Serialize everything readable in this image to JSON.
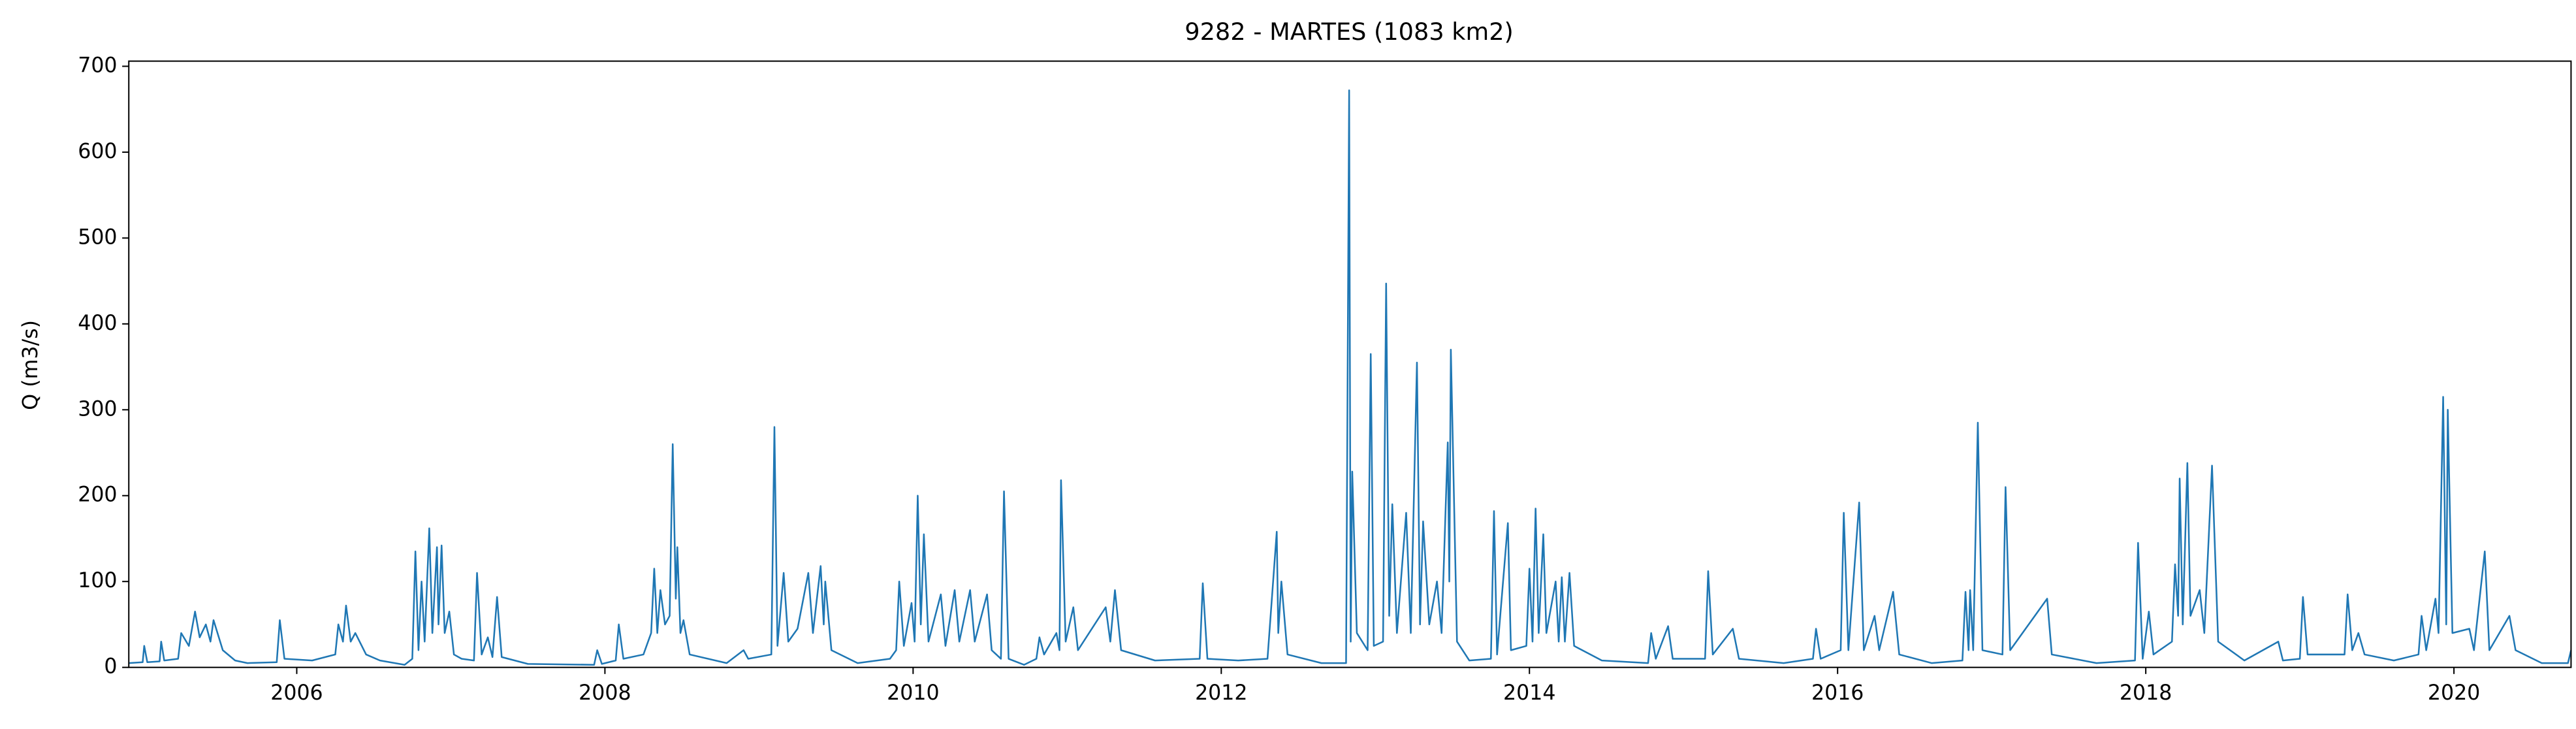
{
  "chart_data": {
    "type": "line",
    "title": "9282 - MARTES (1083 km2)",
    "y_label": "Q (m3/s)",
    "color": "#1f77b4",
    "x": [
      2004.91,
      2005.0,
      2005.01,
      2005.03,
      2005.11,
      2005.12,
      2005.14,
      2005.23,
      2005.25,
      2005.3,
      2005.34,
      2005.37,
      2005.41,
      2005.44,
      2005.46,
      2005.52,
      2005.6,
      2005.68,
      2005.87,
      2005.89,
      2005.92,
      2006.1,
      2006.25,
      2006.27,
      2006.3,
      2006.32,
      2006.35,
      2006.38,
      2006.45,
      2006.54,
      2006.7,
      2006.75,
      2006.77,
      2006.79,
      2006.81,
      2006.83,
      2006.86,
      2006.88,
      2006.91,
      2006.92,
      2006.94,
      2006.96,
      2006.99,
      2007.02,
      2007.07,
      2007.15,
      2007.17,
      2007.2,
      2007.24,
      2007.27,
      2007.3,
      2007.33,
      2007.5,
      2007.93,
      2007.95,
      2007.98,
      2008.07,
      2008.09,
      2008.12,
      2008.25,
      2008.3,
      2008.32,
      2008.34,
      2008.36,
      2008.39,
      2008.42,
      2008.44,
      2008.46,
      2008.47,
      2008.49,
      2008.51,
      2008.55,
      2008.79,
      2008.9,
      2008.93,
      2009.08,
      2009.1,
      2009.12,
      2009.16,
      2009.19,
      2009.25,
      2009.32,
      2009.35,
      2009.4,
      2009.42,
      2009.43,
      2009.47,
      2009.64,
      2009.85,
      2009.89,
      2009.91,
      2009.94,
      2009.99,
      2010.01,
      2010.03,
      2010.05,
      2010.07,
      2010.1,
      2010.18,
      2010.21,
      2010.27,
      2010.3,
      2010.37,
      2010.4,
      2010.48,
      2010.51,
      2010.57,
      2010.59,
      2010.62,
      2010.72,
      2010.8,
      2010.82,
      2010.85,
      2010.93,
      2010.95,
      2010.96,
      2010.99,
      2011.04,
      2011.07,
      2011.25,
      2011.28,
      2011.31,
      2011.35,
      2011.57,
      2011.86,
      2011.88,
      2011.91,
      2012.11,
      2012.3,
      2012.36,
      2012.37,
      2012.39,
      2012.43,
      2012.65,
      2012.81,
      2012.83,
      2012.84,
      2012.85,
      2012.88,
      2012.95,
      2012.97,
      2012.99,
      2013.05,
      2013.07,
      2013.09,
      2013.11,
      2013.14,
      2013.2,
      2013.23,
      2013.27,
      2013.29,
      2013.31,
      2013.35,
      2013.4,
      2013.43,
      2013.47,
      2013.48,
      2013.49,
      2013.53,
      2013.61,
      2013.75,
      2013.77,
      2013.79,
      2013.86,
      2013.88,
      2013.98,
      2014.0,
      2014.02,
      2014.04,
      2014.06,
      2014.09,
      2014.11,
      2014.17,
      2014.19,
      2014.21,
      2014.23,
      2014.26,
      2014.29,
      2014.47,
      2014.77,
      2014.79,
      2014.82,
      2014.9,
      2014.93,
      2015.14,
      2015.16,
      2015.19,
      2015.32,
      2015.36,
      2015.65,
      2015.84,
      2015.86,
      2015.89,
      2016.02,
      2016.04,
      2016.07,
      2016.14,
      2016.17,
      2016.24,
      2016.27,
      2016.36,
      2016.4,
      2016.61,
      2016.81,
      2016.83,
      2016.85,
      2016.86,
      2016.88,
      2016.91,
      2016.94,
      2017.07,
      2017.09,
      2017.12,
      2017.36,
      2017.39,
      2017.68,
      2017.93,
      2017.95,
      2017.98,
      2018.02,
      2018.05,
      2018.17,
      2018.19,
      2018.21,
      2018.22,
      2018.24,
      2018.27,
      2018.29,
      2018.35,
      2018.38,
      2018.43,
      2018.47,
      2018.64,
      2018.86,
      2018.89,
      2019.0,
      2019.02,
      2019.05,
      2019.29,
      2019.31,
      2019.34,
      2019.38,
      2019.42,
      2019.61,
      2019.77,
      2019.79,
      2019.82,
      2019.88,
      2019.9,
      2019.93,
      2019.95,
      2019.96,
      2019.99,
      2020.1,
      2020.13,
      2020.2,
      2020.23,
      2020.36,
      2020.4,
      2020.57,
      2020.74,
      2020.76
    ],
    "values": [
      5,
      6,
      25,
      6,
      7,
      30,
      8,
      10,
      40,
      25,
      65,
      35,
      50,
      30,
      55,
      20,
      8,
      5,
      6,
      55,
      10,
      8,
      15,
      50,
      30,
      72,
      30,
      40,
      15,
      8,
      3,
      10,
      135,
      20,
      100,
      30,
      162,
      40,
      140,
      50,
      142,
      40,
      65,
      15,
      10,
      8,
      110,
      15,
      35,
      12,
      82,
      12,
      4,
      3,
      20,
      4,
      8,
      50,
      10,
      15,
      40,
      115,
      40,
      90,
      50,
      60,
      260,
      80,
      140,
      40,
      55,
      15,
      5,
      20,
      10,
      15,
      280,
      25,
      110,
      30,
      45,
      110,
      40,
      118,
      50,
      100,
      20,
      5,
      10,
      20,
      100,
      25,
      75,
      30,
      200,
      50,
      155,
      30,
      85,
      25,
      90,
      30,
      90,
      30,
      85,
      20,
      10,
      205,
      10,
      3,
      10,
      35,
      15,
      40,
      20,
      218,
      30,
      70,
      20,
      70,
      30,
      90,
      20,
      8,
      10,
      98,
      10,
      8,
      10,
      158,
      40,
      100,
      15,
      5,
      5,
      672,
      30,
      228,
      40,
      20,
      365,
      25,
      30,
      447,
      60,
      190,
      40,
      180,
      40,
      355,
      50,
      170,
      50,
      100,
      40,
      262,
      100,
      370,
      30,
      8,
      10,
      182,
      15,
      168,
      20,
      25,
      115,
      30,
      185,
      40,
      155,
      40,
      100,
      30,
      105,
      30,
      110,
      25,
      8,
      5,
      40,
      10,
      48,
      10,
      10,
      112,
      15,
      45,
      10,
      5,
      10,
      45,
      10,
      20,
      180,
      20,
      192,
      20,
      60,
      20,
      88,
      15,
      5,
      8,
      88,
      20,
      90,
      20,
      285,
      20,
      15,
      210,
      20,
      80,
      15,
      5,
      8,
      145,
      10,
      65,
      15,
      30,
      120,
      60,
      220,
      50,
      238,
      60,
      90,
      40,
      235,
      30,
      8,
      30,
      8,
      10,
      82,
      15,
      15,
      85,
      20,
      40,
      15,
      8,
      15,
      60,
      20,
      80,
      40,
      315,
      50,
      300,
      40,
      45,
      20,
      135,
      20,
      60,
      20,
      5,
      5,
      20
    ],
    "xlim": [
      2004.91,
      2020.76
    ],
    "xticks": [
      2006,
      2008,
      2010,
      2012,
      2014,
      2016,
      2018,
      2020
    ],
    "ylim": [
      0,
      706
    ],
    "yticks": [
      0,
      100,
      200,
      300,
      400,
      500,
      600,
      700
    ]
  }
}
